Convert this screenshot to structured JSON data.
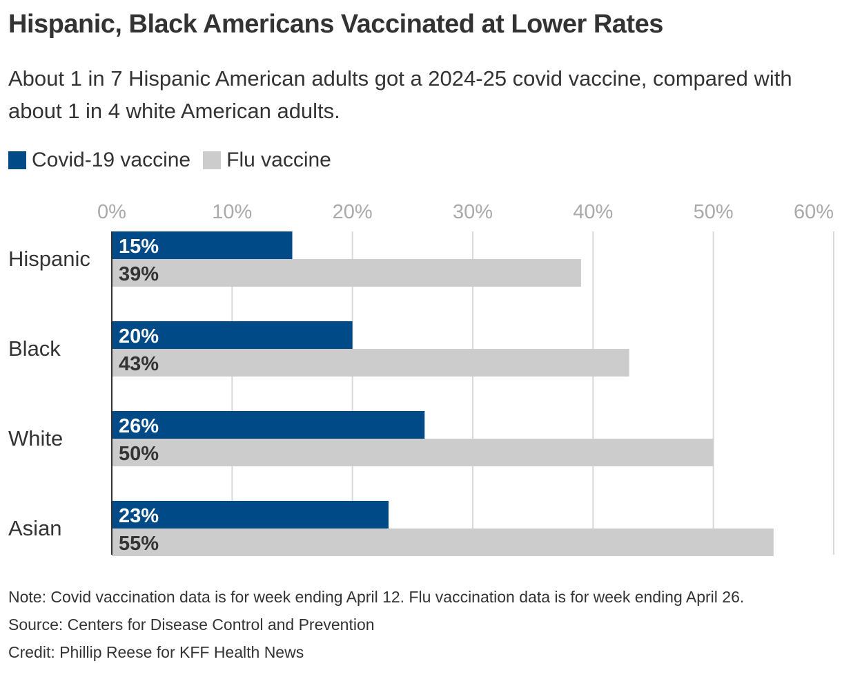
{
  "title": "Hispanic, Black Americans Vaccinated at Lower Rates",
  "subtitle": "About 1 in 7 Hispanic American adults got a 2024-25 covid vaccine, compared with about 1 in 4 white American adults.",
  "legend": [
    {
      "label": "Covid-19 vaccine",
      "color": "#004b87"
    },
    {
      "label": "Flu vaccine",
      "color": "#cccccc"
    }
  ],
  "chart_data": {
    "type": "bar",
    "orientation": "horizontal",
    "categories": [
      "Hispanic",
      "Black",
      "White",
      "Asian"
    ],
    "series": [
      {
        "name": "Covid-19 vaccine",
        "color": "#004b87",
        "values": [
          15,
          20,
          26,
          23
        ],
        "labels": [
          "15%",
          "20%",
          "26%",
          "23%"
        ]
      },
      {
        "name": "Flu vaccine",
        "color": "#cccccc",
        "values": [
          39,
          43,
          50,
          55
        ],
        "labels": [
          "39%",
          "43%",
          "50%",
          "55%"
        ]
      }
    ],
    "xlim": [
      0,
      60
    ],
    "xticks": [
      0,
      10,
      20,
      30,
      40,
      50,
      60
    ],
    "xtick_labels": [
      "0%",
      "10%",
      "20%",
      "30%",
      "40%",
      "50%",
      "60%"
    ],
    "grid": true
  },
  "footer": {
    "note": "Note: Covid vaccination data is for week ending April 12. Flu vaccination data is for week ending April 26.",
    "source": "Source: Centers for Disease Control and Prevention",
    "credit": "Credit: Phillip Reese for KFF Health News"
  }
}
